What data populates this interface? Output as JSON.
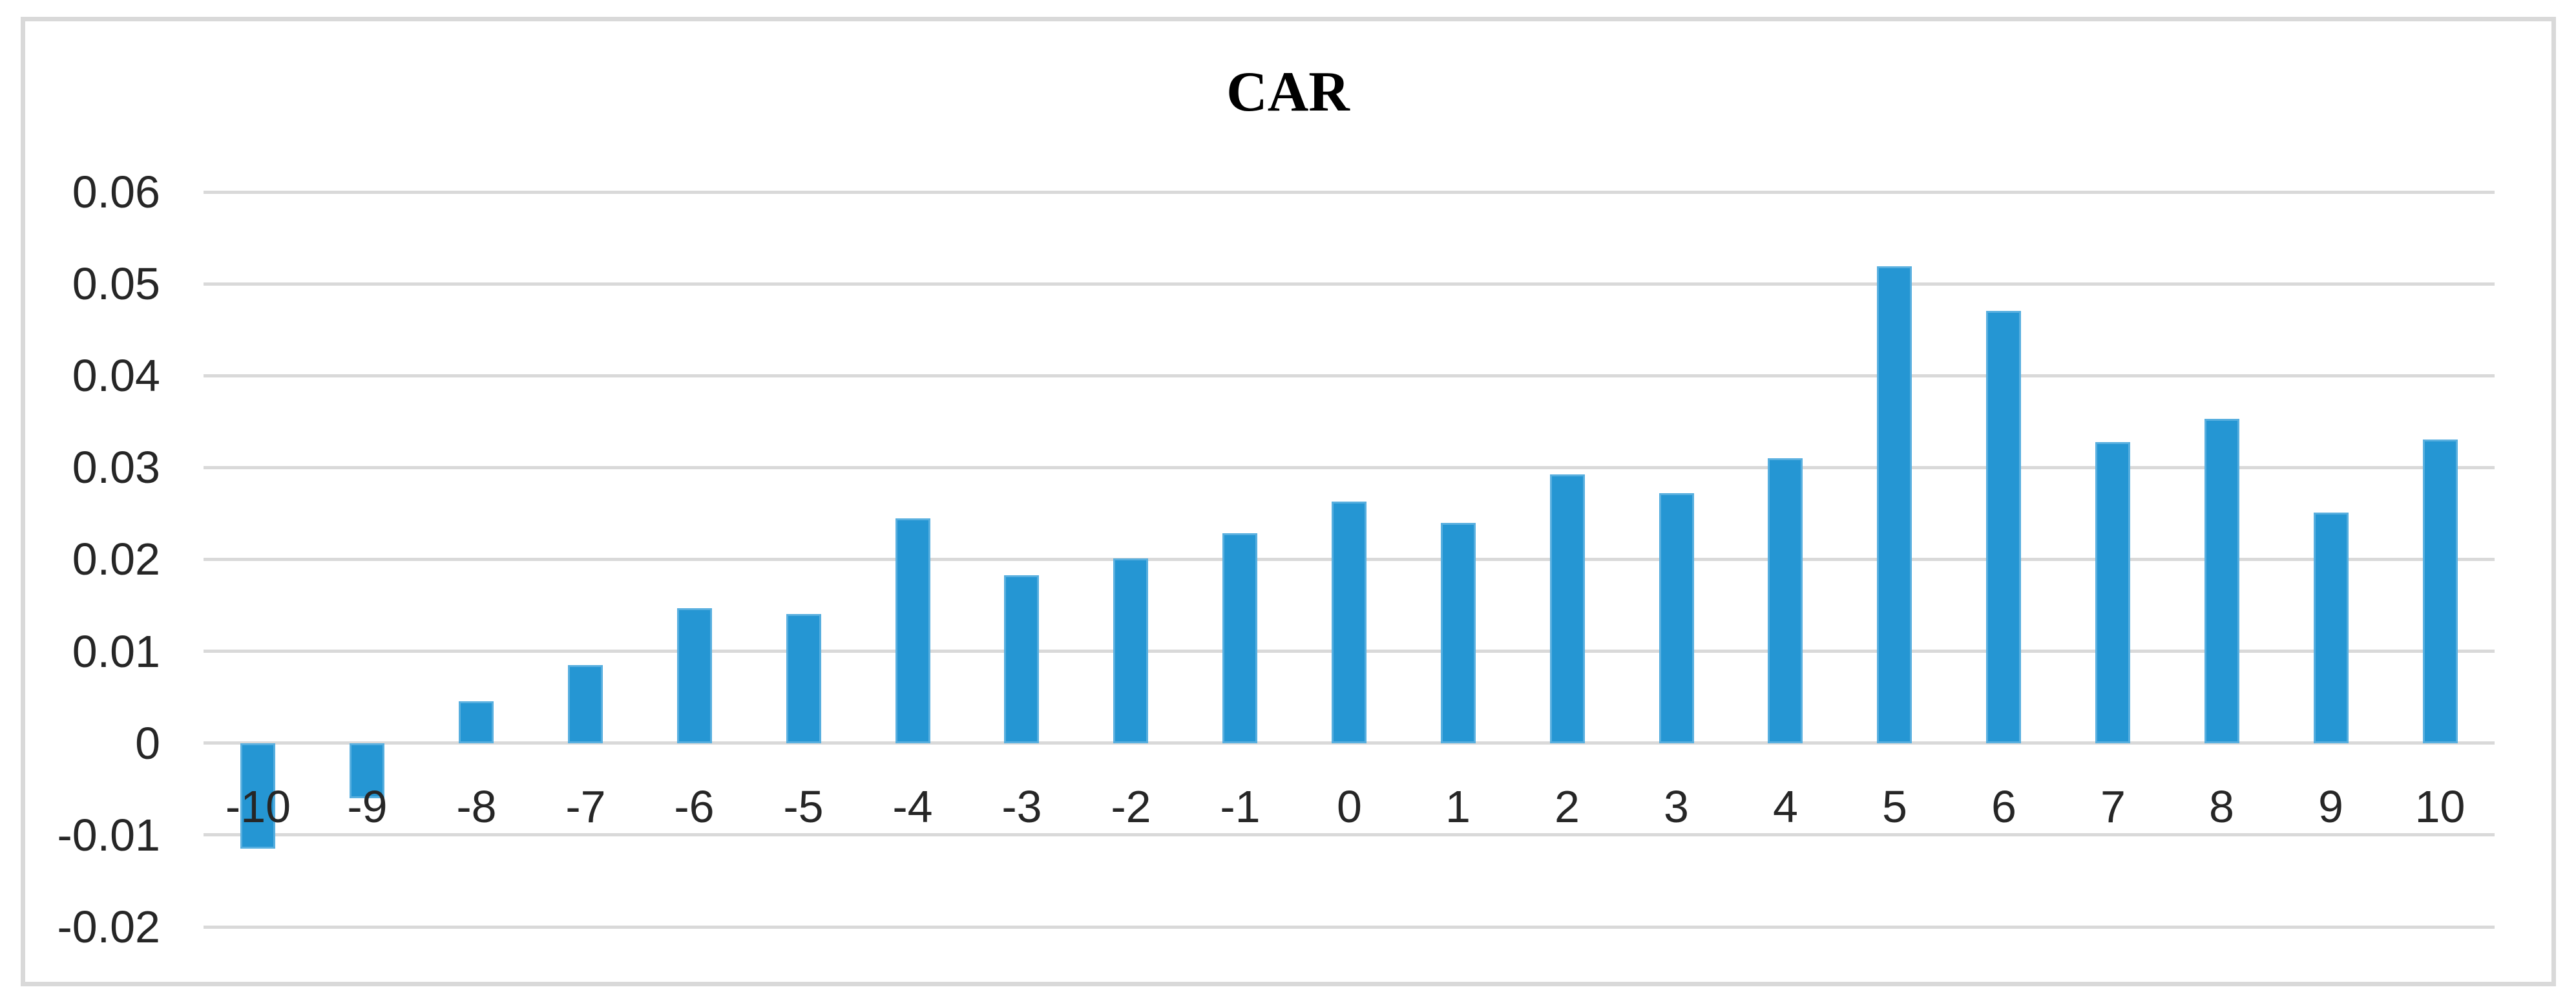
{
  "chart_data": {
    "type": "bar",
    "title": "CAR",
    "categories": [
      "-10",
      "-9",
      "-8",
      "-7",
      "-6",
      "-5",
      "-4",
      "-3",
      "-2",
      "-1",
      "0",
      "1",
      "2",
      "3",
      "4",
      "5",
      "6",
      "7",
      "8",
      "9",
      "10"
    ],
    "values": [
      -0.0115,
      -0.006,
      0.0046,
      0.0085,
      0.0147,
      0.0141,
      0.0245,
      0.0183,
      0.0201,
      0.0229,
      0.0263,
      0.024,
      0.0293,
      0.0272,
      0.031,
      0.0519,
      0.0471,
      0.0328,
      0.0353,
      0.0251,
      0.0331
    ],
    "xlabel": "",
    "ylabel": "",
    "ylim": [
      -0.02,
      0.06
    ],
    "ytick_step": 0.01,
    "yticks": [
      "0.06",
      "0.05",
      "0.04",
      "0.03",
      "0.02",
      "0.01",
      "0",
      "-0.01",
      "-0.02"
    ],
    "grid": true,
    "legend_position": "none",
    "colors": {
      "bar_fill": "#2596d3",
      "bar_border": "#58afdf",
      "gridline": "#d9d9d9",
      "frame_border": "#d9d9d9",
      "tick_text": "#262626",
      "title_text": "#000000"
    }
  }
}
